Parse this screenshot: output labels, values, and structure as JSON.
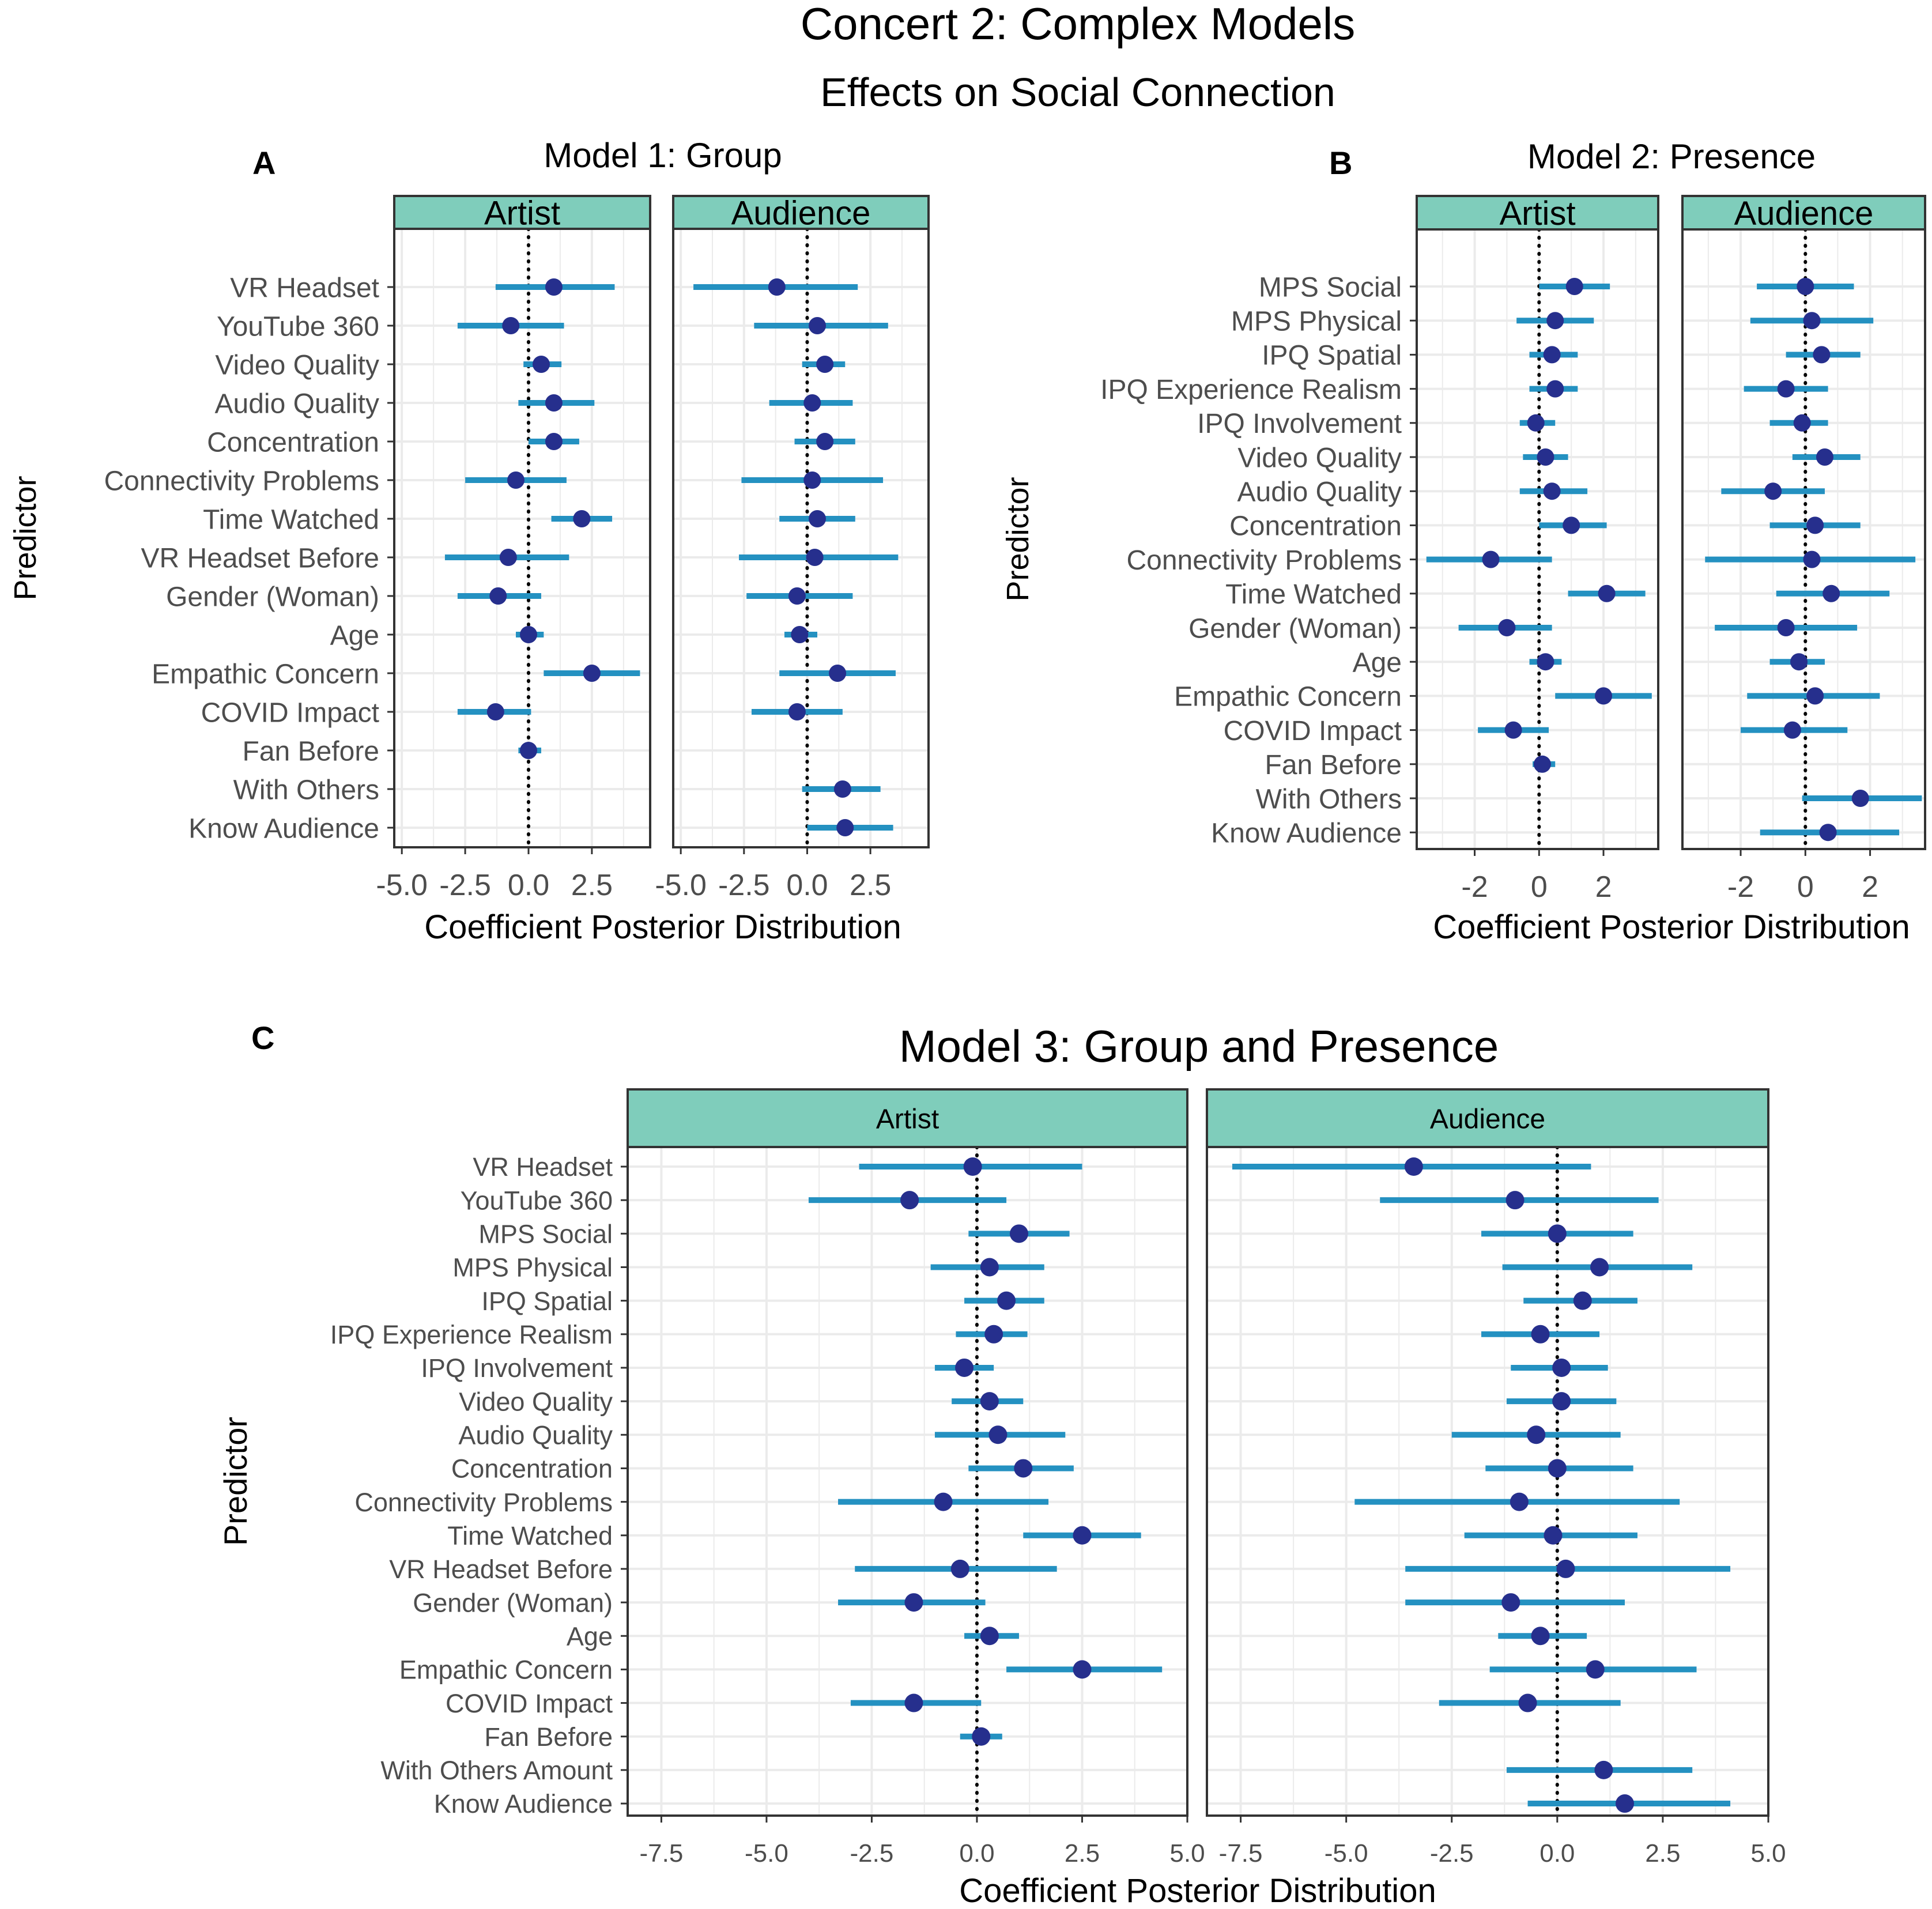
{
  "title": "Concert 2: Complex Models",
  "subtitle": "Effects on Social Connection",
  "colors": {
    "strip": "#7fcdbb",
    "interval": "#2491c1",
    "point": "#262f8d",
    "grid": "#ebebeb",
    "border": "#333333"
  },
  "chart_data": [
    {
      "id": "A",
      "letter": "A",
      "title": "Model 1: Group",
      "type": "scatter",
      "subtype": "coefficient-interval",
      "ylabel": "Predictor",
      "xlabel": "Coefficient Posterior Distribution",
      "xlim": [
        -5.3,
        4.8
      ],
      "xticks": [
        -5.0,
        -2.5,
        0.0,
        2.5
      ],
      "xtick_labels": [
        "-5.0",
        "-2.5",
        "0.0",
        "2.5"
      ],
      "reference_line": 0,
      "predictors": [
        "VR Headset",
        "YouTube 360",
        "Video Quality",
        "Audio Quality",
        "Concentration",
        "Connectivity Problems",
        "Time Watched",
        "VR Headset Before",
        "Gender (Woman)",
        "Age",
        "Empathic Concern",
        "COVID Impact",
        "Fan Before",
        "With Others",
        "Know Audience"
      ],
      "facets": [
        {
          "label": "Artist",
          "estimates": [
            [
              1.0,
              -1.3,
              3.4
            ],
            [
              -0.7,
              -2.8,
              1.4
            ],
            [
              0.5,
              -0.2,
              1.3
            ],
            [
              1.0,
              -0.4,
              2.6
            ],
            [
              1.0,
              0.0,
              2.0
            ],
            [
              -0.5,
              -2.5,
              1.5
            ],
            [
              2.1,
              0.9,
              3.3
            ],
            [
              -0.8,
              -3.3,
              1.6
            ],
            [
              -1.2,
              -2.8,
              0.5
            ],
            [
              0.0,
              -0.5,
              0.6
            ],
            [
              2.5,
              0.6,
              4.4
            ],
            [
              -1.3,
              -2.8,
              0.1
            ],
            [
              0.0,
              -0.4,
              0.5
            ],
            null,
            null
          ]
        },
        {
          "label": "Audience",
          "estimates": [
            [
              -1.2,
              -4.5,
              2.0
            ],
            [
              0.4,
              -2.1,
              3.2
            ],
            [
              0.7,
              -0.2,
              1.5
            ],
            [
              0.2,
              -1.5,
              1.8
            ],
            [
              0.7,
              -0.5,
              1.9
            ],
            [
              0.2,
              -2.6,
              3.0
            ],
            [
              0.4,
              -1.1,
              1.9
            ],
            [
              0.3,
              -2.7,
              3.6
            ],
            [
              -0.4,
              -2.4,
              1.8
            ],
            [
              -0.3,
              -0.9,
              0.4
            ],
            [
              1.2,
              -1.1,
              3.5
            ],
            [
              -0.4,
              -2.2,
              1.4
            ],
            null,
            [
              1.4,
              -0.2,
              2.9
            ],
            [
              1.5,
              0.0,
              3.4
            ]
          ]
        }
      ]
    },
    {
      "id": "B",
      "letter": "B",
      "title": "Model 2: Presence",
      "type": "scatter",
      "subtype": "coefficient-interval",
      "ylabel": "Predictor",
      "xlabel": "Coefficient Posterior Distribution",
      "xlim": [
        -3.8,
        3.7
      ],
      "xticks": [
        -2,
        0,
        2
      ],
      "xtick_labels": [
        "-2",
        "0",
        "2"
      ],
      "reference_line": 0,
      "predictors": [
        "MPS Social",
        "MPS Physical",
        "IPQ Spatial",
        "IPQ Experience Realism",
        "IPQ Involvement",
        "Video Quality",
        "Audio Quality",
        "Concentration",
        "Connectivity Problems",
        "Time Watched",
        "Gender (Woman)",
        "Age",
        "Empathic Concern",
        "COVID Impact",
        "Fan Before",
        "With Others",
        "Know Audience"
      ],
      "facets": [
        {
          "label": "Artist",
          "estimates": [
            [
              1.1,
              0.0,
              2.2
            ],
            [
              0.5,
              -0.7,
              1.7
            ],
            [
              0.4,
              -0.3,
              1.2
            ],
            [
              0.5,
              -0.3,
              1.2
            ],
            [
              -0.1,
              -0.6,
              0.5
            ],
            [
              0.2,
              -0.5,
              0.9
            ],
            [
              0.4,
              -0.6,
              1.5
            ],
            [
              1.0,
              0.0,
              2.1
            ],
            [
              -1.5,
              -3.5,
              0.4
            ],
            [
              2.1,
              0.9,
              3.3
            ],
            [
              -1.0,
              -2.5,
              0.4
            ],
            [
              0.2,
              -0.3,
              0.7
            ],
            [
              2.0,
              0.5,
              3.5
            ],
            [
              -0.8,
              -1.9,
              0.3
            ],
            [
              0.1,
              -0.2,
              0.5
            ],
            null,
            null
          ]
        },
        {
          "label": "Audience",
          "estimates": [
            [
              0.0,
              -1.5,
              1.5
            ],
            [
              0.2,
              -1.7,
              2.1
            ],
            [
              0.5,
              -0.6,
              1.7
            ],
            [
              -0.6,
              -1.9,
              0.7
            ],
            [
              -0.1,
              -1.1,
              0.7
            ],
            [
              0.6,
              -0.4,
              1.7
            ],
            [
              -1.0,
              -2.6,
              0.6
            ],
            [
              0.3,
              -1.1,
              1.7
            ],
            [
              0.2,
              -3.1,
              3.4
            ],
            [
              0.8,
              -0.9,
              2.6
            ],
            [
              -0.6,
              -2.8,
              1.6
            ],
            [
              -0.2,
              -1.1,
              0.6
            ],
            [
              0.3,
              -1.8,
              2.3
            ],
            [
              -0.4,
              -2.0,
              1.3
            ],
            null,
            [
              1.7,
              -0.1,
              3.6
            ],
            [
              0.7,
              -1.4,
              2.9
            ]
          ]
        }
      ]
    },
    {
      "id": "C",
      "letter": "C",
      "title": "Model 3: Group and Presence",
      "type": "scatter",
      "subtype": "coefficient-interval",
      "ylabel": "Predictor",
      "xlabel": "Coefficient Posterior Distribution",
      "xlim": [
        -8.3,
        5.0
      ],
      "xticks": [
        -7.5,
        -5.0,
        -2.5,
        0.0,
        2.5,
        5.0
      ],
      "xtick_labels": [
        "-7.5",
        "-5.0",
        "-2.5",
        "0.0",
        "2.5",
        "5.0"
      ],
      "reference_line": 0,
      "predictors": [
        "VR Headset",
        "YouTube 360",
        "MPS Social",
        "MPS Physical",
        "IPQ Spatial",
        "IPQ Experience Realism",
        "IPQ Involvement",
        "Video Quality",
        "Audio Quality",
        "Concentration",
        "Connectivity Problems",
        "Time Watched",
        "VR Headset Before",
        "Gender (Woman)",
        "Age",
        "Empathic Concern",
        "COVID Impact",
        "Fan Before",
        "With Others Amount",
        "Know Audience"
      ],
      "facets": [
        {
          "label": "Artist",
          "estimates": [
            [
              -0.1,
              -2.8,
              2.5
            ],
            [
              -1.6,
              -4.0,
              0.7
            ],
            [
              1.0,
              -0.2,
              2.2
            ],
            [
              0.3,
              -1.1,
              1.6
            ],
            [
              0.7,
              -0.3,
              1.6
            ],
            [
              0.4,
              -0.5,
              1.2
            ],
            [
              -0.3,
              -1.0,
              0.4
            ],
            [
              0.3,
              -0.6,
              1.1
            ],
            [
              0.5,
              -1.0,
              2.1
            ],
            [
              1.1,
              -0.2,
              2.3
            ],
            [
              -0.8,
              -3.3,
              1.7
            ],
            [
              2.5,
              1.1,
              3.9
            ],
            [
              -0.4,
              -2.9,
              1.9
            ],
            [
              -1.5,
              -3.3,
              0.2
            ],
            [
              0.3,
              -0.3,
              1.0
            ],
            [
              2.5,
              0.7,
              4.4
            ],
            [
              -1.5,
              -3.0,
              0.1
            ],
            [
              0.1,
              -0.4,
              0.6
            ],
            null,
            null
          ]
        },
        {
          "label": "Audience",
          "estimates": [
            [
              -3.4,
              -7.7,
              0.8
            ],
            [
              -1.0,
              -4.2,
              2.4
            ],
            [
              0.0,
              -1.8,
              1.8
            ],
            [
              1.0,
              -1.3,
              3.2
            ],
            [
              0.6,
              -0.8,
              1.9
            ],
            [
              -0.4,
              -1.8,
              1.0
            ],
            [
              0.1,
              -1.1,
              1.2
            ],
            [
              0.1,
              -1.2,
              1.4
            ],
            [
              -0.5,
              -2.5,
              1.5
            ],
            [
              0.0,
              -1.7,
              1.8
            ],
            [
              -0.9,
              -4.8,
              2.9
            ],
            [
              -0.1,
              -2.2,
              1.9
            ],
            [
              0.2,
              -3.6,
              4.1
            ],
            [
              -1.1,
              -3.6,
              1.6
            ],
            [
              -0.4,
              -1.4,
              0.7
            ],
            [
              0.9,
              -1.6,
              3.3
            ],
            [
              -0.7,
              -2.8,
              1.5
            ],
            null,
            [
              1.1,
              -1.2,
              3.2
            ],
            [
              1.6,
              -0.7,
              4.1
            ]
          ]
        }
      ]
    }
  ]
}
